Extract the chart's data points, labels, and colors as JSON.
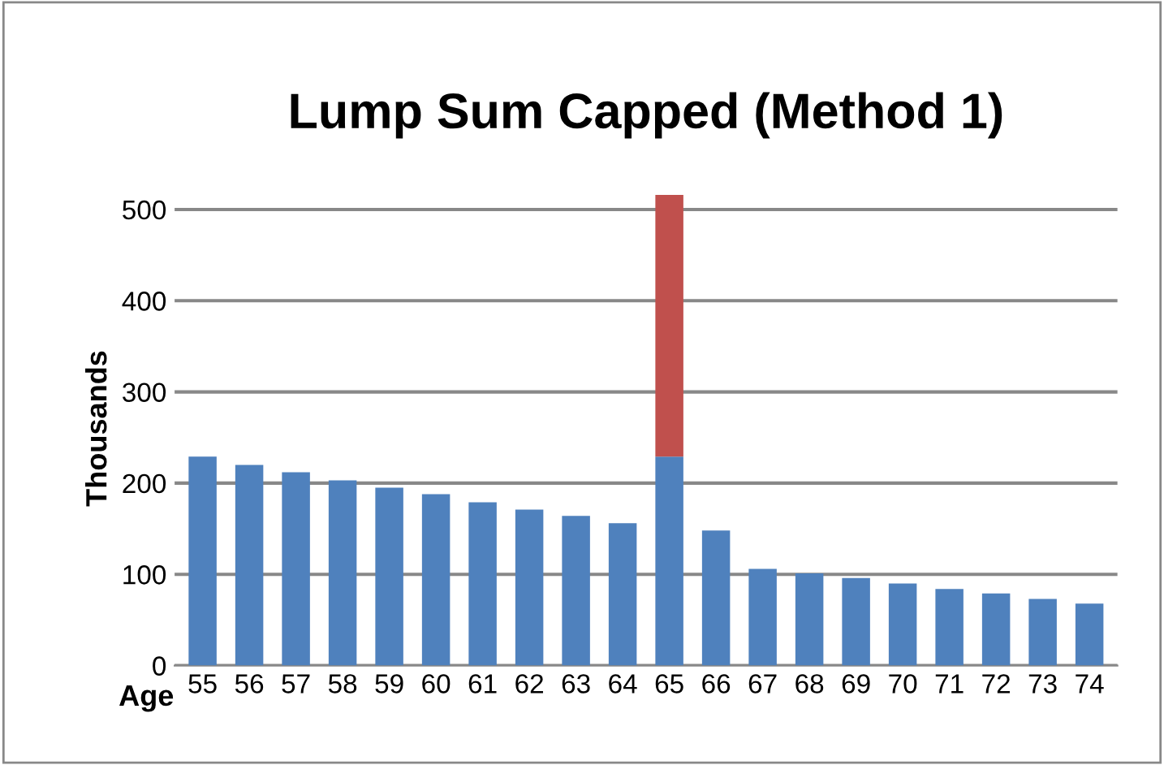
{
  "chart_data": {
    "type": "bar",
    "title": "Lump Sum Capped (Method 1)",
    "xlabel": "Age",
    "ylabel": "Thousands",
    "categories": [
      "55",
      "56",
      "57",
      "58",
      "59",
      "60",
      "61",
      "62",
      "63",
      "64",
      "65",
      "66",
      "67",
      "68",
      "69",
      "70",
      "71",
      "72",
      "73",
      "74"
    ],
    "stacked": true,
    "series": [
      {
        "color": "#4f81bd",
        "values": [
          229,
          220,
          212,
          203,
          195,
          188,
          179,
          171,
          164,
          156,
          229,
          148,
          106,
          101,
          96,
          90,
          84,
          79,
          73,
          68
        ]
      },
      {
        "color": "#c0504d",
        "values": [
          0,
          0,
          0,
          0,
          0,
          0,
          0,
          0,
          0,
          0,
          287,
          0,
          0,
          0,
          0,
          0,
          0,
          0,
          0,
          0
        ]
      }
    ],
    "ylim": [
      0,
      520
    ],
    "yticks": [
      0,
      100,
      200,
      300,
      400,
      500
    ],
    "grid": "y",
    "legend": false
  }
}
